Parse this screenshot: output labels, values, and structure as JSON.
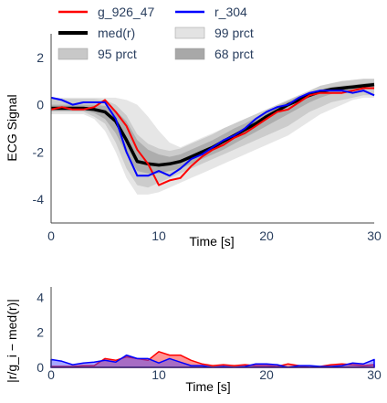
{
  "chart_data": [
    {
      "type": "line",
      "xlabel": "Time [s]",
      "ylabel": "ECG Signal",
      "xlim": [
        0,
        30
      ],
      "ylim": [
        -5,
        3
      ],
      "xticks": [
        0,
        10,
        20,
        30
      ],
      "yticks": [
        2,
        0,
        -2,
        -4
      ],
      "grid": false,
      "legend_position": "top",
      "legend": [
        {
          "label": "g_926_47",
          "kind": "line",
          "color": "#ff0000"
        },
        {
          "label": "r_304",
          "kind": "line",
          "color": "#0000ff"
        },
        {
          "label": "med(r)",
          "kind": "line",
          "color": "#000000"
        },
        {
          "label": "99 prct",
          "kind": "band",
          "color": "#e3e3e3"
        },
        {
          "label": "95 prct",
          "kind": "band",
          "color": "#c8c8c8"
        },
        {
          "label": "68 prct",
          "kind": "band",
          "color": "#a8a8a8"
        }
      ],
      "x": [
        0,
        1,
        2,
        3,
        4,
        5,
        6,
        7,
        8,
        9,
        10,
        11,
        12,
        13,
        14,
        15,
        16,
        17,
        18,
        19,
        20,
        21,
        22,
        23,
        24,
        25,
        26,
        27,
        28,
        29,
        30
      ],
      "series": [
        {
          "name": "g_926_47",
          "color": "#ff0000",
          "values": [
            -0.2,
            -0.1,
            -0.2,
            -0.2,
            -0.1,
            0.2,
            -0.3,
            -0.9,
            -1.9,
            -2.5,
            -3.4,
            -3.2,
            -3.1,
            -2.6,
            -2.2,
            -1.9,
            -1.7,
            -1.4,
            -1.2,
            -0.9,
            -0.6,
            -0.3,
            -0.2,
            0.1,
            0.4,
            0.5,
            0.5,
            0.5,
            0.6,
            0.7,
            0.7
          ]
        },
        {
          "name": "r_304",
          "color": "#0000ff",
          "values": [
            0.3,
            0.2,
            0.0,
            0.1,
            0.1,
            0.1,
            -0.6,
            -2.0,
            -3.0,
            -3.0,
            -2.8,
            -3.0,
            -2.7,
            -2.3,
            -2.1,
            -1.8,
            -1.5,
            -1.3,
            -1.0,
            -0.6,
            -0.3,
            -0.1,
            0.0,
            0.3,
            0.5,
            0.6,
            0.6,
            0.6,
            0.5,
            0.6,
            0.4
          ]
        },
        {
          "name": "med(r)",
          "color": "#000000",
          "values": [
            -0.15,
            -0.15,
            -0.15,
            -0.15,
            -0.2,
            -0.3,
            -0.7,
            -1.5,
            -2.4,
            -2.5,
            -2.55,
            -2.5,
            -2.4,
            -2.2,
            -2.0,
            -1.8,
            -1.55,
            -1.3,
            -1.05,
            -0.8,
            -0.5,
            -0.25,
            0.0,
            0.2,
            0.4,
            0.55,
            0.65,
            0.7,
            0.75,
            0.8,
            0.85
          ]
        }
      ],
      "bands": [
        {
          "name": "99 prct",
          "color": "#e6e6e6",
          "lower": [
            -0.4,
            -0.4,
            -0.4,
            -0.4,
            -0.6,
            -1.1,
            -2.0,
            -3.1,
            -3.8,
            -3.8,
            -3.7,
            -3.5,
            -3.3,
            -3.1,
            -2.9,
            -2.7,
            -2.5,
            -2.3,
            -2.1,
            -1.9,
            -1.7,
            -1.5,
            -1.3,
            -1.0,
            -0.7,
            -0.4,
            -0.2,
            0.0,
            0.2,
            0.3,
            0.3
          ],
          "upper": [
            0.3,
            0.3,
            0.3,
            0.3,
            0.3,
            0.3,
            0.3,
            0.2,
            0.0,
            -0.5,
            -1.1,
            -1.6,
            -1.8,
            -1.6,
            -1.4,
            -1.2,
            -1.0,
            -0.8,
            -0.6,
            -0.4,
            -0.2,
            0.0,
            0.2,
            0.4,
            0.6,
            0.8,
            0.9,
            1.0,
            1.05,
            1.1,
            1.1
          ]
        },
        {
          "name": "95 prct",
          "color": "#cccccc",
          "lower": [
            -0.3,
            -0.3,
            -0.3,
            -0.3,
            -0.5,
            -0.8,
            -1.6,
            -2.7,
            -3.4,
            -3.5,
            -3.3,
            -3.1,
            -2.9,
            -2.7,
            -2.5,
            -2.3,
            -2.1,
            -1.9,
            -1.7,
            -1.5,
            -1.3,
            -1.1,
            -0.9,
            -0.6,
            -0.3,
            -0.1,
            0.1,
            0.2,
            0.3,
            0.4,
            0.4
          ]
        },
        {
          "name": "68 prct",
          "color": "#adadad",
          "lower": [
            -0.25,
            -0.25,
            -0.25,
            -0.25,
            -0.35,
            -0.6,
            -1.2,
            -2.1,
            -2.8,
            -2.9,
            -2.9,
            -2.8,
            -2.7,
            -2.5,
            -2.3,
            -2.1,
            -1.9,
            -1.65,
            -1.4,
            -1.15,
            -0.9,
            -0.65,
            -0.4,
            -0.15,
            0.1,
            0.3,
            0.45,
            0.55,
            0.6,
            0.65,
            0.7
          ],
          "upper": [
            0.0,
            0.0,
            0.0,
            0.0,
            0.0,
            -0.05,
            -0.25,
            -0.7,
            -1.5,
            -1.9,
            -2.1,
            -2.2,
            -2.1,
            -1.9,
            -1.7,
            -1.5,
            -1.25,
            -1.0,
            -0.8,
            -0.55,
            -0.3,
            -0.05,
            0.15,
            0.35,
            0.5,
            0.65,
            0.75,
            0.8,
            0.85,
            0.9,
            0.95
          ]
        }
      ]
    },
    {
      "type": "area",
      "xlabel": "Time [s]",
      "ylabel": "|r/g_i − med(r)|",
      "xlim": [
        0,
        30
      ],
      "ylim": [
        0,
        4.6
      ],
      "xticks": [
        0,
        10,
        20,
        30
      ],
      "yticks": [
        4,
        2,
        0
      ],
      "grid": false,
      "x": [
        0,
        1,
        2,
        3,
        4,
        5,
        6,
        7,
        8,
        9,
        10,
        11,
        12,
        13,
        14,
        15,
        16,
        17,
        18,
        19,
        20,
        21,
        22,
        23,
        24,
        25,
        26,
        27,
        28,
        29,
        30
      ],
      "series": [
        {
          "name": "g_926_47",
          "color": "#ff0000",
          "values": [
            0.05,
            0.05,
            0.05,
            0.1,
            0.1,
            0.5,
            0.4,
            0.6,
            0.5,
            0.4,
            0.9,
            0.7,
            0.7,
            0.4,
            0.2,
            0.1,
            0.15,
            0.1,
            0.15,
            0.1,
            0.1,
            0.05,
            0.2,
            0.1,
            0.0,
            0.05,
            0.15,
            0.2,
            0.15,
            0.1,
            0.15
          ]
        },
        {
          "name": "r_304",
          "color": "#0000ff",
          "values": [
            0.45,
            0.35,
            0.15,
            0.25,
            0.3,
            0.4,
            0.3,
            0.7,
            0.5,
            0.5,
            0.25,
            0.5,
            0.3,
            0.1,
            0.1,
            0.0,
            0.05,
            0.0,
            0.05,
            0.2,
            0.2,
            0.15,
            0.0,
            0.1,
            0.1,
            0.05,
            0.05,
            0.1,
            0.25,
            0.2,
            0.45
          ]
        }
      ]
    }
  ]
}
